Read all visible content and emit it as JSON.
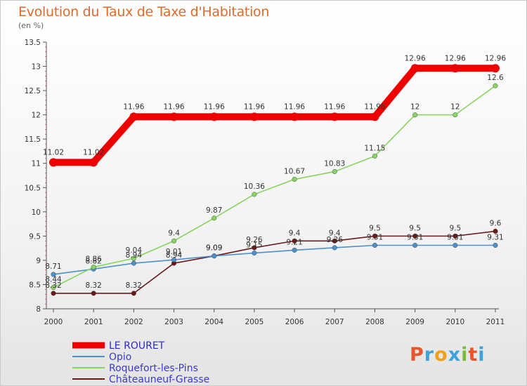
{
  "title": "Evolution du Taux de Taxe d'Habitation",
  "subtitle": "(en %)",
  "logo": "Proxiti",
  "chart_data": {
    "type": "line",
    "x": [
      "2000",
      "2001",
      "2002",
      "2003",
      "2004",
      "2005",
      "2006",
      "2007",
      "2008",
      "2009",
      "2010",
      "2011"
    ],
    "ylim": [
      8,
      13.5
    ],
    "yticks": [
      "8",
      "8.5",
      "9",
      "9.5",
      "10",
      "10.5",
      "11",
      "11.5",
      "12",
      "12.5",
      "13",
      "13.5"
    ],
    "grid": false,
    "legend_position": "bottom-left",
    "series": [
      {
        "name": "LE ROURET",
        "color": "#ee0000",
        "values": [
          11.02,
          11.02,
          11.96,
          11.96,
          11.96,
          11.96,
          11.96,
          11.96,
          11.96,
          12.96,
          12.96,
          12.96
        ],
        "labels": [
          "11.02",
          "11.02",
          "11.96",
          "11.96",
          "11.96",
          "11.96",
          "11.96",
          "11.96",
          "11.96",
          "12.96",
          "12.96",
          "12.96"
        ]
      },
      {
        "name": "Opio",
        "color": "#4d90cc",
        "values": [
          8.71,
          8.82,
          8.94,
          9.01,
          9.09,
          9.15,
          9.21,
          9.26,
          9.31,
          9.31,
          9.31,
          9.31
        ],
        "labels": [
          "8.71",
          "8.82",
          "8.94",
          "9.01",
          "9.09",
          "9.15",
          "9.21",
          "9.26",
          "9.31",
          "9.31",
          "9.31",
          "9.31"
        ]
      },
      {
        "name": "Roquefort-les-Pins",
        "color": "#88d460",
        "values": [
          8.44,
          8.86,
          9.04,
          9.4,
          9.87,
          10.36,
          10.67,
          10.83,
          11.15,
          12,
          12,
          12.6
        ],
        "labels": [
          "8.44",
          "8.86",
          "9.04",
          "9.4",
          "9.87",
          "10.36",
          "10.67",
          "10.83",
          "11.15",
          "12",
          "12",
          "12.6"
        ]
      },
      {
        "name": "Châteauneuf-Grasse",
        "color": "#6b1a1a",
        "values": [
          8.32,
          8.32,
          8.32,
          8.94,
          9.09,
          9.26,
          9.4,
          9.4,
          9.5,
          9.5,
          9.5,
          9.6
        ],
        "labels": [
          "8.32",
          "8.32",
          "8.32",
          "8.94",
          "9.09",
          "9.26",
          "9.4",
          "9.4",
          "9.5",
          "9.5",
          "9.5",
          "9.6"
        ]
      }
    ]
  }
}
